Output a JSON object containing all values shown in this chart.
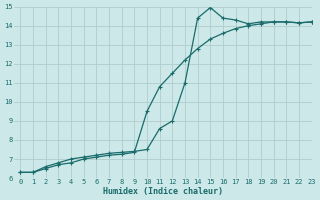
{
  "title": "",
  "xlabel": "Humidex (Indice chaleur)",
  "ylabel": "",
  "xlim": [
    -0.5,
    23
  ],
  "ylim": [
    6,
    15
  ],
  "xticks": [
    0,
    1,
    2,
    3,
    4,
    5,
    6,
    7,
    8,
    9,
    10,
    11,
    12,
    13,
    14,
    15,
    16,
    17,
    18,
    19,
    20,
    21,
    22,
    23
  ],
  "yticks": [
    6,
    7,
    8,
    9,
    10,
    11,
    12,
    13,
    14,
    15
  ],
  "background_color": "#cce8e8",
  "grid_color": "#b0cccc",
  "line_color": "#1a6b6b",
  "series1_x": [
    0,
    1,
    2,
    3,
    4,
    5,
    6,
    7,
    8,
    9,
    10,
    11,
    12,
    13,
    14,
    15,
    16,
    17,
    18,
    19,
    20,
    21,
    22,
    23
  ],
  "series1_y": [
    6.3,
    6.3,
    6.6,
    6.8,
    7.0,
    7.1,
    7.2,
    7.3,
    7.35,
    7.4,
    7.5,
    8.6,
    9.0,
    11.0,
    14.4,
    14.95,
    14.4,
    14.3,
    14.1,
    14.2,
    14.2,
    14.2,
    14.15,
    14.2
  ],
  "series2_x": [
    0,
    1,
    2,
    3,
    4,
    5,
    6,
    7,
    8,
    9,
    10,
    11,
    12,
    13,
    14,
    15,
    16,
    17,
    18,
    19,
    20,
    21,
    22,
    23
  ],
  "series2_y": [
    6.3,
    6.3,
    6.5,
    6.7,
    6.8,
    7.0,
    7.1,
    7.2,
    7.25,
    7.35,
    9.5,
    10.8,
    11.5,
    12.2,
    12.8,
    13.3,
    13.6,
    13.85,
    14.0,
    14.1,
    14.2,
    14.2,
    14.15,
    14.2
  ],
  "font_family": "monospace",
  "xlabel_color": "#1a6b6b",
  "tick_color": "#1a6b6b"
}
